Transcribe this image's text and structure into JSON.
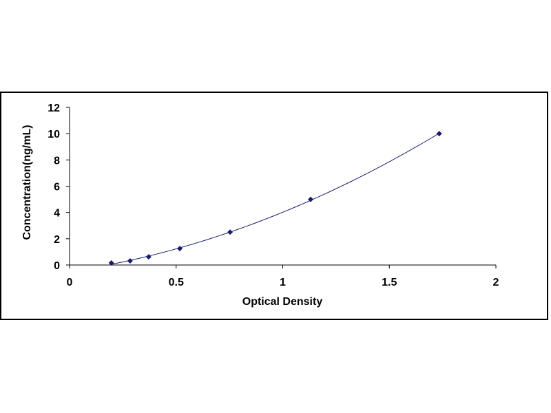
{
  "chart_data": {
    "type": "scatter",
    "title": "",
    "xlabel": "Optical Density",
    "ylabel": "Concentration(ng/mL)",
    "xlim": [
      0,
      2
    ],
    "ylim": [
      0,
      12
    ],
    "x_ticks": [
      0,
      0.5,
      1,
      1.5,
      2
    ],
    "x_tick_labels": [
      "0",
      "0.5",
      "1",
      "1.5",
      "2"
    ],
    "y_ticks": [
      0,
      2,
      4,
      6,
      8,
      10,
      12
    ],
    "y_tick_labels": [
      "0",
      "2",
      "4",
      "6",
      "8",
      "10",
      "12"
    ],
    "grid": false,
    "legend": "none",
    "series": [
      {
        "x": [
          0.196,
          0.284,
          0.371,
          0.517,
          0.753,
          1.131,
          1.734
        ],
        "y": [
          0.156,
          0.313,
          0.625,
          1.25,
          2.5,
          5,
          10
        ],
        "marker": "diamond",
        "trendline": true
      }
    ],
    "colors": {
      "marker": "#1a1a6e",
      "line": "#1a1a6e",
      "axis": "#000000"
    }
  }
}
